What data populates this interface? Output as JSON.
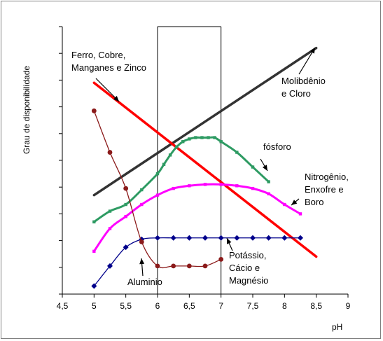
{
  "chart_data": {
    "type": "line",
    "title": "",
    "xlabel": "pH",
    "ylabel": "Grau de disponibilidade",
    "xlim": [
      4.5,
      9
    ],
    "ylim": [
      0,
      10
    ],
    "x_ticks": [
      "4,5",
      "5",
      "5,5",
      "6",
      "6,5",
      "7",
      "7,5",
      "8",
      "8,5",
      "9"
    ],
    "y_tick_count": 10,
    "y_tick_labels": false,
    "grid": false,
    "legend": "none",
    "highlight_band": [
      6,
      7
    ],
    "series": [
      {
        "name": "Molibdênio e Cloro",
        "color": "#333333",
        "marker": "none",
        "x": [
          5,
          8.5
        ],
        "y": [
          3.7,
          9.2
        ]
      },
      {
        "name": "Ferro, Cobre, Manganes e Zinco",
        "color": "#ff0000",
        "marker": "none",
        "x": [
          5,
          8.5
        ],
        "y": [
          7.9,
          1.4
        ]
      },
      {
        "name": "fósforo",
        "color": "#2e9b63",
        "marker": "square",
        "x": [
          5,
          5.25,
          5.5,
          5.75,
          6,
          6.1,
          6.2,
          6.3,
          6.4,
          6.5,
          6.6,
          6.7,
          6.8,
          6.9,
          7,
          7.25,
          7.5,
          7.75
        ],
        "y": [
          2.7,
          3.1,
          3.35,
          3.9,
          4.5,
          4.85,
          5.2,
          5.5,
          5.7,
          5.8,
          5.85,
          5.85,
          5.85,
          5.85,
          5.7,
          5.3,
          4.75,
          4.2
        ]
      },
      {
        "name": "Nitrogênio, Enxofre e Boro",
        "color": "#ff00ff",
        "marker": "square",
        "x": [
          5,
          5.25,
          5.5,
          5.75,
          6,
          6.25,
          6.5,
          6.75,
          7,
          7.25,
          7.5,
          7.75,
          8,
          8.25
        ],
        "y": [
          1.6,
          2.45,
          2.9,
          3.35,
          3.7,
          3.95,
          4.05,
          4.1,
          4.1,
          4.05,
          3.95,
          3.75,
          3.35,
          3.0
        ]
      },
      {
        "name": "Potássio, Cácio e Magnésio",
        "color": "#00008b",
        "marker": "diamond",
        "x": [
          5,
          5.25,
          5.5,
          5.75,
          6,
          6.25,
          6.5,
          6.75,
          7,
          7.25,
          7.5,
          7.75,
          8,
          8.25
        ],
        "y": [
          0.3,
          1.05,
          1.75,
          2.05,
          2.1,
          2.1,
          2.1,
          2.1,
          2.1,
          2.1,
          2.1,
          2.1,
          2.1,
          2.1
        ]
      },
      {
        "name": "Aluminio",
        "color": "#8b1a1a",
        "marker": "square",
        "x": [
          5,
          5.25,
          5.5,
          5.75,
          6,
          6.25,
          6.5,
          6.75,
          7
        ],
        "y": [
          6.85,
          5.3,
          3.95,
          1.95,
          1.05,
          1.05,
          1.05,
          1.05,
          1.3
        ]
      }
    ],
    "annotations": [
      {
        "lines": [
          "Ferro, Cobre,",
          "Manganes e Zinco"
        ],
        "x": 5.6,
        "y": 7.7
      },
      {
        "lines": [
          "Molibdênio",
          "e Cloro"
        ],
        "x": 8.45,
        "y": 9.15
      },
      {
        "lines": [
          "fósforo"
        ],
        "x": 7.6,
        "y": 5.4
      },
      {
        "lines": [
          "Nitrogênio,",
          "Enxofre e",
          "Boro"
        ],
        "x": 8.2,
        "y": 3.15
      },
      {
        "lines": [
          "Potássio,",
          "Cácio e",
          "Magnésio"
        ],
        "x": 7.1,
        "y": 2.05
      },
      {
        "lines": [
          "Aluminio"
        ],
        "x": 5.85,
        "y": 1.35
      }
    ]
  }
}
